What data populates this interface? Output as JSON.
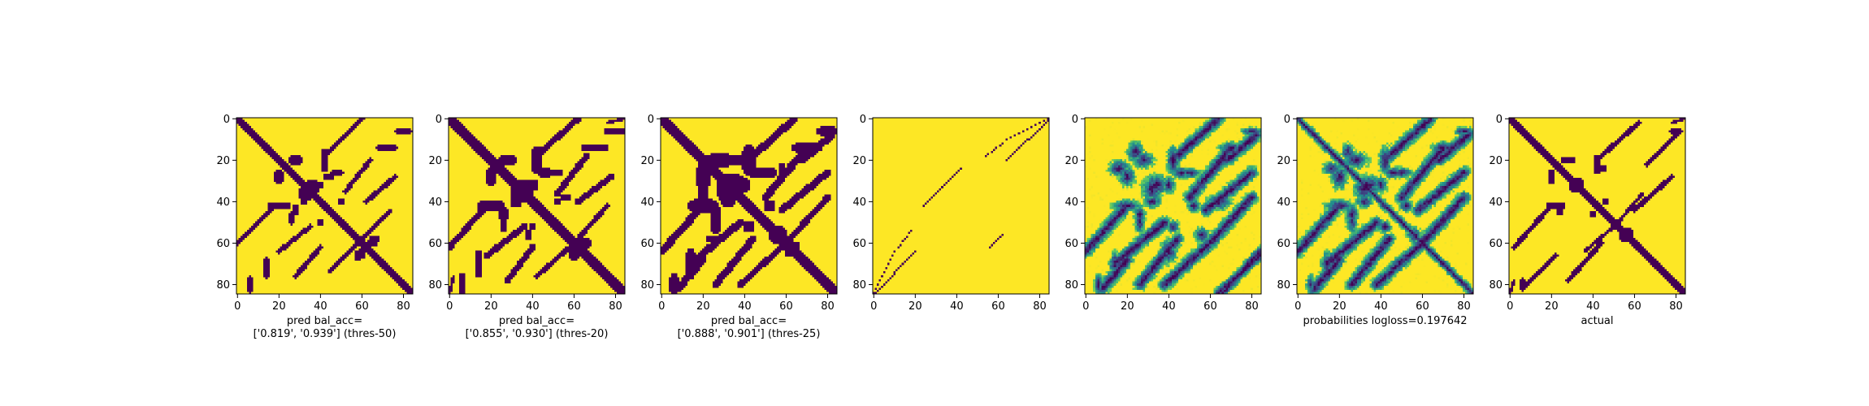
{
  "figure": {
    "background": "#ffffff",
    "colormap": [
      "#440154",
      "#3b528b",
      "#21918c",
      "#5ec962",
      "#fde725"
    ]
  },
  "chart_data": [
    {
      "type": "heatmap",
      "name": "pred-thres-50",
      "xlabel_lines": [
        "pred bal_acc=",
        "['0.819', '0.939'] (thres-50)"
      ],
      "x_ticks": [
        0,
        20,
        40,
        60,
        80
      ],
      "y_ticks": [
        0,
        20,
        40,
        60,
        80
      ],
      "xlim": [
        0,
        85
      ],
      "ylim": [
        85,
        0
      ],
      "value_range": [
        0,
        1
      ],
      "description": "binary prediction; dark = 0 (contact), yellow = 1",
      "diagonal_width": 3,
      "blobs": [
        [
          28,
          20,
          4,
          3
        ],
        [
          36,
          33,
          4,
          4
        ],
        [
          44,
          28,
          3,
          2
        ],
        [
          20,
          42,
          6,
          2
        ],
        [
          48,
          26,
          4,
          1.5
        ],
        [
          65,
          60,
          2.5,
          2
        ],
        [
          58,
          66,
          2,
          2.5
        ],
        [
          80,
          6,
          5,
          1.5
        ],
        [
          72,
          14,
          6,
          1.5
        ],
        [
          32,
          40,
          2,
          2
        ],
        [
          40,
          50,
          1.5,
          1.5
        ]
      ],
      "lines": [
        [
          44,
          16,
          60,
          0,
          2
        ],
        [
          62,
          40,
          76,
          28,
          2
        ],
        [
          20,
          64,
          35,
          52,
          2
        ],
        [
          44,
          74,
          58,
          60,
          1.5
        ]
      ]
    },
    {
      "type": "heatmap",
      "name": "pred-thres-20",
      "xlabel_lines": [
        "pred bal_acc=",
        "['0.855', '0.930'] (thres-20)"
      ],
      "x_ticks": [
        0,
        20,
        40,
        60,
        80
      ],
      "y_ticks": [
        0,
        20,
        40,
        60,
        80
      ],
      "xlim": [
        0,
        85
      ],
      "ylim": [
        85,
        0
      ],
      "value_range": [
        0,
        1
      ],
      "description": "binary prediction; dark = 0 (contact), yellow = 1",
      "diagonal_width": 3.5,
      "blobs": [
        [
          28,
          20,
          5,
          3
        ],
        [
          36,
          34,
          5,
          5
        ],
        [
          46,
          26,
          4,
          2.5
        ],
        [
          20,
          42,
          7,
          3
        ],
        [
          50,
          26,
          5,
          2
        ],
        [
          64,
          60,
          3,
          2.5
        ],
        [
          60,
          66,
          2.5,
          3
        ],
        [
          80,
          6,
          6,
          2
        ],
        [
          70,
          14,
          7,
          2
        ],
        [
          32,
          40,
          3,
          3
        ],
        [
          40,
          52,
          2,
          2
        ],
        [
          56,
          38,
          3,
          2
        ],
        [
          82,
          84,
          2,
          2
        ]
      ],
      "lines": [
        [
          44,
          16,
          62,
          0,
          2.5
        ],
        [
          62,
          40,
          78,
          28,
          2.5
        ],
        [
          18,
          66,
          36,
          52,
          2.5
        ],
        [
          42,
          76,
          60,
          60,
          2
        ],
        [
          76,
          2,
          84,
          0,
          1.5
        ]
      ]
    },
    {
      "type": "heatmap",
      "name": "pred-thres-25",
      "xlabel_lines": [
        "pred bal_acc=",
        "['0.888', '0.901'] (thres-25)"
      ],
      "x_ticks": [
        0,
        20,
        40,
        60,
        80
      ],
      "y_ticks": [
        0,
        20,
        40,
        60,
        80
      ],
      "xlim": [
        0,
        85
      ],
      "ylim": [
        85,
        0
      ],
      "value_range": [
        0,
        1
      ],
      "description": "binary prediction; dark = 0 (contact), yellow = 1",
      "diagonal_width": 4,
      "blobs": [
        [
          28,
          20,
          7,
          4
        ],
        [
          34,
          32,
          7,
          6
        ],
        [
          46,
          26,
          5,
          3
        ],
        [
          20,
          42,
          8,
          3.5
        ],
        [
          50,
          26,
          6,
          3
        ],
        [
          56,
          56,
          5,
          4
        ],
        [
          62,
          64,
          3,
          3
        ],
        [
          80,
          6,
          6,
          2.5
        ],
        [
          70,
          14,
          8,
          3
        ],
        [
          32,
          40,
          4,
          3
        ],
        [
          42,
          52,
          3,
          3
        ],
        [
          24,
          58,
          3,
          2
        ],
        [
          20,
          36,
          3,
          3
        ]
      ],
      "lines": [
        [
          44,
          18,
          64,
          0,
          3
        ],
        [
          58,
          44,
          80,
          26,
          3
        ],
        [
          14,
          70,
          38,
          50,
          3
        ],
        [
          38,
          80,
          62,
          58,
          2.5
        ],
        [
          8,
          82,
          20,
          68,
          3
        ]
      ]
    },
    {
      "type": "heatmap",
      "name": "pred-sparse",
      "xlabel_lines": [],
      "x_ticks": [
        0,
        20,
        40,
        60,
        80
      ],
      "y_ticks": [
        0,
        20,
        40,
        60,
        80
      ],
      "xlim": [
        0,
        85
      ],
      "ylim": [
        85,
        0
      ],
      "value_range": [
        0,
        1
      ],
      "description": "almost all yellow with a few thin dark antidiagonal streaks",
      "diagonal_width": 0,
      "blobs": [],
      "lines": [
        [
          0,
          85,
          20,
          64,
          0.6
        ],
        [
          24,
          42,
          42,
          24,
          0.6
        ],
        [
          54,
          18,
          62,
          12,
          0.6
        ],
        [
          64,
          10,
          84,
          0,
          0.6
        ],
        [
          56,
          62,
          62,
          56,
          0.6
        ]
      ]
    },
    {
      "type": "heatmap",
      "name": "probabilities-raw",
      "xlabel_lines": [],
      "x_ticks": [
        0,
        20,
        40,
        60,
        80
      ],
      "y_ticks": [
        0,
        20,
        40,
        60,
        80
      ],
      "xlim": [
        0,
        85
      ],
      "ylim": [
        85,
        0
      ],
      "value_range": [
        0,
        1
      ],
      "description": "continuous probability map, mostly yellow-green with dark blue features",
      "diagonal_width": 0,
      "blobs": [
        [
          28,
          20,
          5,
          4
        ],
        [
          34,
          32,
          6,
          5
        ],
        [
          46,
          26,
          4,
          3
        ],
        [
          20,
          42,
          7,
          3
        ],
        [
          50,
          26,
          5,
          2.5
        ],
        [
          56,
          56,
          4,
          3
        ],
        [
          80,
          6,
          5,
          2
        ],
        [
          70,
          14,
          6,
          2.5
        ],
        [
          32,
          40,
          4,
          3
        ],
        [
          42,
          52,
          3,
          3
        ],
        [
          16,
          24,
          5,
          4
        ],
        [
          64,
          40,
          6,
          4
        ]
      ],
      "lines": [
        [
          44,
          18,
          64,
          0,
          2.5
        ],
        [
          58,
          44,
          80,
          26,
          2.5
        ],
        [
          14,
          70,
          38,
          50,
          2.5
        ],
        [
          38,
          80,
          62,
          58,
          2.5
        ],
        [
          8,
          82,
          20,
          68,
          2.5
        ],
        [
          66,
          84,
          84,
          64,
          2
        ]
      ]
    },
    {
      "type": "heatmap",
      "name": "probabilities",
      "xlabel_lines": [
        "probabilities logloss=0.197642"
      ],
      "x_ticks": [
        0,
        20,
        40,
        60,
        80
      ],
      "y_ticks": [
        0,
        20,
        40,
        60,
        80
      ],
      "xlim": [
        0,
        85
      ],
      "ylim": [
        85,
        0
      ],
      "value_range": [
        0,
        1
      ],
      "description": "continuous probability map with strong dark main diagonal",
      "diagonal_width": 3.5,
      "blobs": [
        [
          28,
          20,
          6,
          4
        ],
        [
          34,
          32,
          6,
          5
        ],
        [
          46,
          26,
          5,
          3
        ],
        [
          20,
          42,
          7,
          3
        ],
        [
          50,
          26,
          5,
          2.5
        ],
        [
          56,
          56,
          4,
          3
        ],
        [
          80,
          6,
          5,
          2
        ],
        [
          70,
          14,
          6,
          2.5
        ],
        [
          32,
          40,
          4,
          3
        ],
        [
          42,
          52,
          3,
          3
        ],
        [
          16,
          24,
          4,
          3
        ]
      ],
      "lines": [
        [
          44,
          18,
          64,
          0,
          2.5
        ],
        [
          58,
          44,
          80,
          26,
          2.5
        ],
        [
          14,
          70,
          38,
          50,
          2.5
        ],
        [
          38,
          80,
          62,
          58,
          2.5
        ],
        [
          8,
          82,
          20,
          68,
          2.5
        ]
      ]
    },
    {
      "type": "heatmap",
      "name": "actual",
      "xlabel_lines": [
        "actual"
      ],
      "x_ticks": [
        0,
        20,
        40,
        60,
        80
      ],
      "y_ticks": [
        0,
        20,
        40,
        60,
        80
      ],
      "xlim": [
        0,
        85
      ],
      "ylim": [
        85,
        0
      ],
      "value_range": [
        0,
        1
      ],
      "description": "ground-truth contact map; dark = contact",
      "diagonal_width": 3,
      "blobs": [
        [
          28,
          20,
          4,
          2
        ],
        [
          32,
          32,
          4,
          4
        ],
        [
          44,
          24,
          3,
          1.5
        ],
        [
          22,
          42,
          5,
          2
        ],
        [
          56,
          56,
          4,
          4
        ],
        [
          80,
          6,
          4,
          1.5
        ],
        [
          36,
          36,
          2,
          2
        ],
        [
          46,
          40,
          2,
          2
        ]
      ],
      "lines": [
        [
          44,
          18,
          62,
          2,
          2
        ],
        [
          60,
          44,
          78,
          28,
          2
        ],
        [
          8,
          80,
          22,
          66,
          2
        ],
        [
          36,
          64,
          50,
          52,
          1.5
        ],
        [
          78,
          2,
          84,
          0,
          1.5
        ]
      ]
    }
  ]
}
